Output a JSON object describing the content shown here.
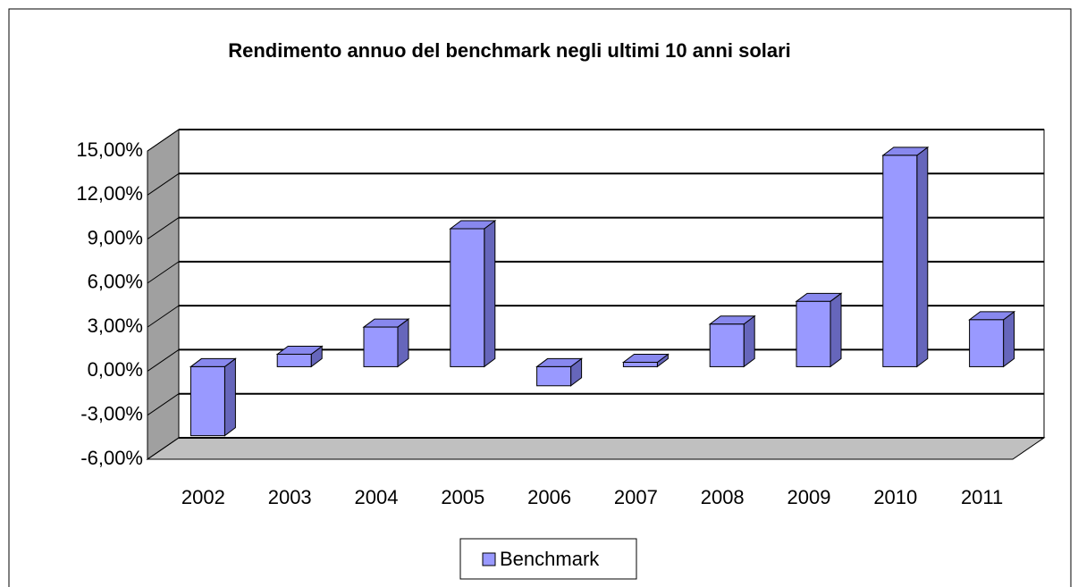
{
  "chart_data": {
    "type": "bar3d",
    "title": "Rendimento annuo del benchmark negli ultimi 10 anni solari",
    "categories": [
      "2002",
      "2003",
      "2004",
      "2005",
      "2006",
      "2007",
      "2008",
      "2009",
      "2010",
      "2011"
    ],
    "series": [
      {
        "name": "Benchmark",
        "color": "#9999ff",
        "values": [
          -4.7,
          0.85,
          2.7,
          9.4,
          -1.3,
          0.3,
          2.9,
          4.45,
          14.4,
          3.2
        ]
      }
    ],
    "ylim": [
      -6,
      15
    ],
    "yticks": [
      {
        "value": -6,
        "label": "-6,00%"
      },
      {
        "value": -3,
        "label": "-3,00%"
      },
      {
        "value": 0,
        "label": "0,00%"
      },
      {
        "value": 3,
        "label": "3,00%"
      },
      {
        "value": 6,
        "label": "6,00%"
      },
      {
        "value": 9,
        "label": "9,00%"
      },
      {
        "value": 12,
        "label": "12,00%"
      },
      {
        "value": 15,
        "label": "15,00%"
      }
    ],
    "grid": true,
    "legend": "bottom"
  }
}
